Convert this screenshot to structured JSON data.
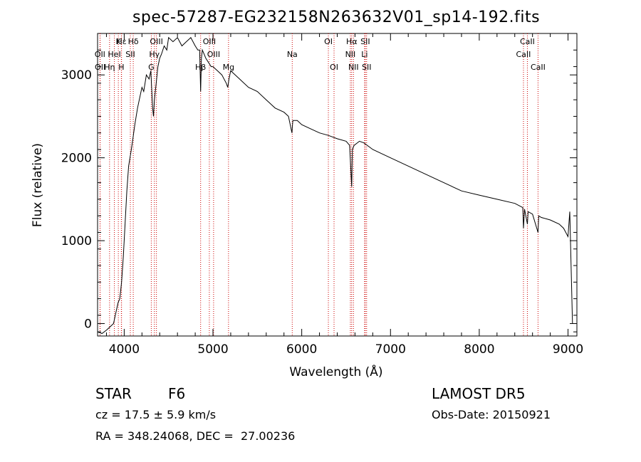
{
  "chart_data": {
    "type": "line",
    "title": "spec-57287-EG232158N263632V01_sp14-192.fits",
    "xlabel": "Wavelength (Å)",
    "ylabel": "Flux (relative)",
    "xlim": [
      3700,
      9100
    ],
    "ylim": [
      -150,
      3500
    ],
    "xticks": [
      4000,
      5000,
      6000,
      7000,
      8000,
      9000
    ],
    "yticks": [
      0,
      1000,
      2000,
      3000
    ],
    "grid": false,
    "series": [
      {
        "line_color": "#000000",
        "x": [
          3700,
          3750,
          3800,
          3850,
          3880,
          3900,
          3930,
          3950,
          3970,
          3990,
          4010,
          4030,
          4050,
          4080,
          4100,
          4120,
          4150,
          4180,
          4200,
          4220,
          4250,
          4280,
          4300,
          4320,
          4330,
          4340,
          4360,
          4380,
          4400,
          4420,
          4450,
          4480,
          4500,
          4550,
          4600,
          4650,
          4700,
          4750,
          4800,
          4830,
          4850,
          4861,
          4870,
          4880,
          4900,
          4920,
          4950,
          4980,
          5000,
          5050,
          5100,
          5150,
          5167,
          5180,
          5200,
          5300,
          5400,
          5500,
          5600,
          5700,
          5800,
          5850,
          5890,
          5896,
          5900,
          5950,
          6000,
          6100,
          6200,
          6300,
          6400,
          6500,
          6540,
          6563,
          6570,
          6590,
          6650,
          6700,
          6800,
          6900,
          7000,
          7200,
          7400,
          7600,
          7800,
          8000,
          8200,
          8400,
          8490,
          8498,
          8510,
          8542,
          8550,
          8600,
          8662,
          8670,
          8700,
          8800,
          8900,
          8950,
          9000,
          9020,
          9050
        ],
        "y": [
          -100,
          -120,
          -80,
          -30,
          0,
          100,
          250,
          300,
          500,
          800,
          1200,
          1600,
          1900,
          2100,
          2250,
          2400,
          2600,
          2750,
          2850,
          2800,
          3000,
          2950,
          3050,
          2600,
          2500,
          2700,
          2900,
          3100,
          3200,
          3250,
          3350,
          3300,
          3450,
          3400,
          3450,
          3350,
          3400,
          3450,
          3350,
          3300,
          3300,
          2800,
          3200,
          3300,
          3250,
          3200,
          3150,
          3100,
          3100,
          3050,
          3000,
          2900,
          2850,
          2950,
          3050,
          2950,
          2850,
          2800,
          2700,
          2600,
          2550,
          2500,
          2300,
          2400,
          2450,
          2450,
          2400,
          2350,
          2300,
          2270,
          2230,
          2200,
          2150,
          1650,
          2100,
          2150,
          2200,
          2180,
          2100,
          2050,
          2000,
          1900,
          1800,
          1700,
          1600,
          1550,
          1500,
          1450,
          1400,
          1150,
          1380,
          1200,
          1350,
          1320,
          1100,
          1300,
          1280,
          1250,
          1200,
          1150,
          1050,
          1350,
          0
        ]
      }
    ],
    "line_markers": [
      {
        "name": "Hδ",
        "x": 4102,
        "row": 0
      },
      {
        "name": "K",
        "x": 3934,
        "row": 0
      },
      {
        "name": "Hε",
        "x": 3970,
        "row": 0
      },
      {
        "name": "Hη",
        "x": 3835,
        "row": 2
      },
      {
        "name": "OII",
        "x": 3727,
        "row": 1
      },
      {
        "name": "OII",
        "x": 3729,
        "row": 2
      },
      {
        "name": "HeI",
        "x": 3889,
        "row": 1
      },
      {
        "name": "SII",
        "x": 4069,
        "row": 1
      },
      {
        "name": "H",
        "x": 3968,
        "row": 2
      },
      {
        "name": "OIII",
        "x": 4363,
        "row": 0
      },
      {
        "name": "Hγ",
        "x": 4340,
        "row": 1
      },
      {
        "name": "G",
        "x": 4305,
        "row": 2
      },
      {
        "name": "OIII",
        "x": 4959,
        "row": 0
      },
      {
        "name": "OIII",
        "x": 5007,
        "row": 1
      },
      {
        "name": "Hβ",
        "x": 4861,
        "row": 2
      },
      {
        "name": "Mg",
        "x": 5175,
        "row": 2
      },
      {
        "name": "Na",
        "x": 5893,
        "row": 1
      },
      {
        "name": "OI",
        "x": 6300,
        "row": 0
      },
      {
        "name": "OI",
        "x": 6364,
        "row": 2
      },
      {
        "name": "Hα",
        "x": 6563,
        "row": 0
      },
      {
        "name": "NII",
        "x": 6548,
        "row": 1
      },
      {
        "name": "NII",
        "x": 6583,
        "row": 2
      },
      {
        "name": "SII",
        "x": 6716,
        "row": 0
      },
      {
        "name": "Li",
        "x": 6708,
        "row": 1
      },
      {
        "name": "SII",
        "x": 6731,
        "row": 2
      },
      {
        "name": "CaII",
        "x": 8542,
        "row": 0
      },
      {
        "name": "CaII",
        "x": 8498,
        "row": 1
      },
      {
        "name": "CaII",
        "x": 8662,
        "row": 2
      }
    ],
    "marker_color": "#cc0000"
  },
  "footer": {
    "class_label": "STAR",
    "subclass": "F6",
    "cz": "cz = 17.5 ± 5.9 km/s",
    "radec": "RA = 348.24068, DEC =  27.00236",
    "survey": "LAMOST DR5",
    "obs_date": "Obs-Date: 20150921"
  }
}
